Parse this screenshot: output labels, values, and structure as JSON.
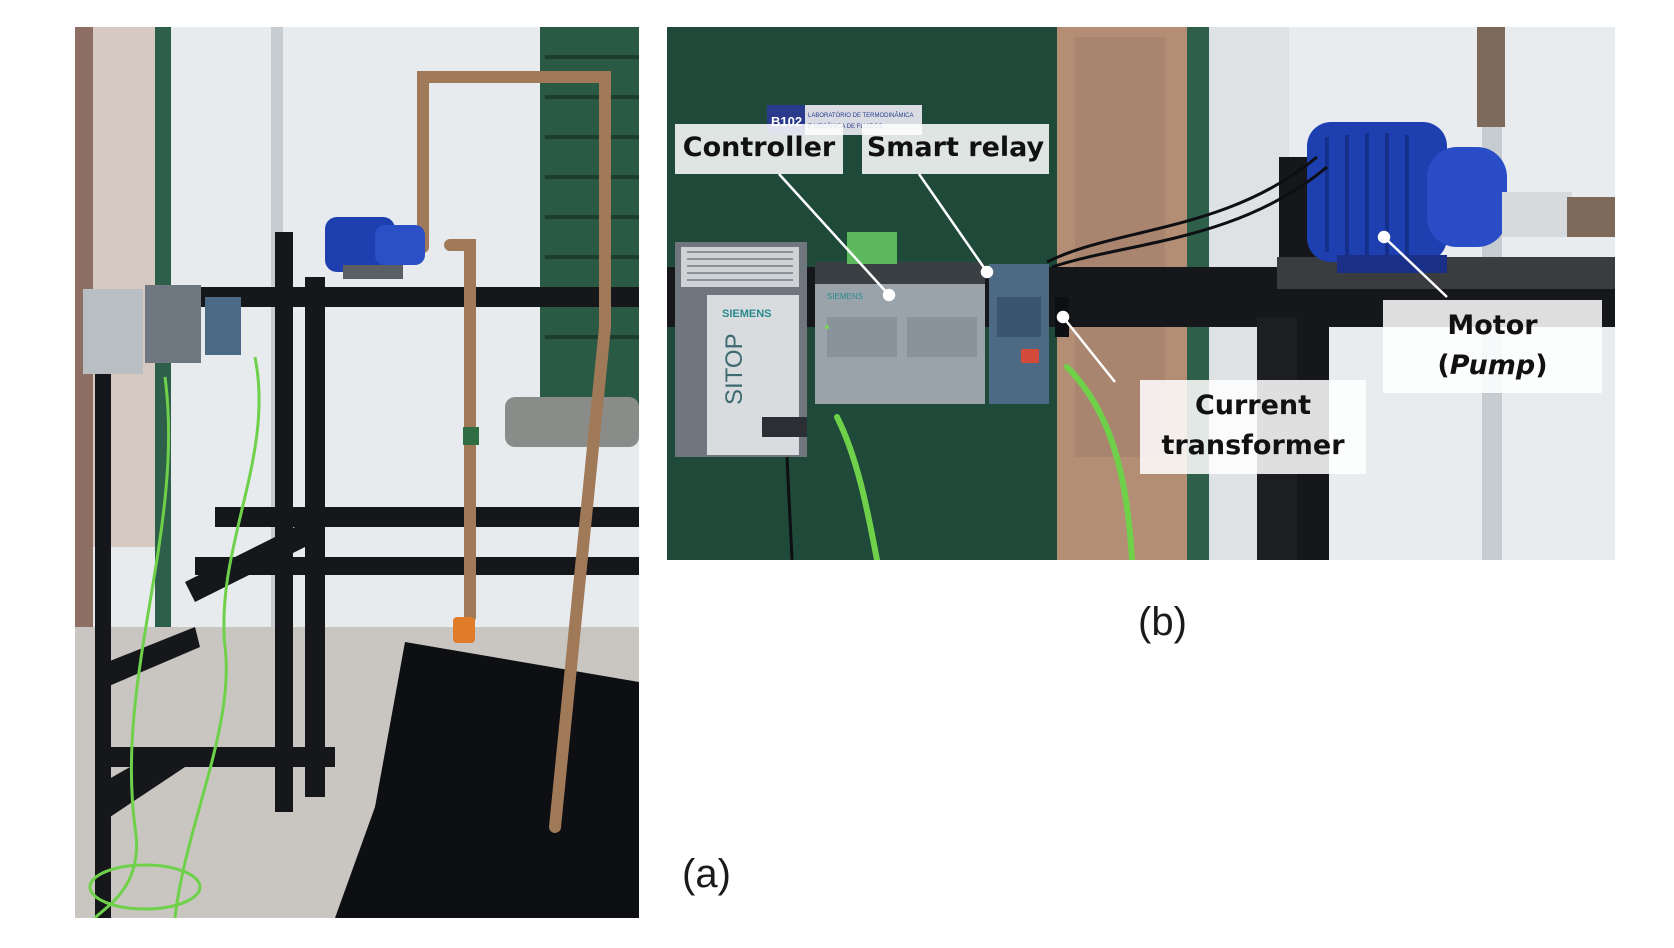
{
  "figure": {
    "panel_a_label": "(a)",
    "panel_b_label": "(b)"
  },
  "annotations": {
    "controller": "Controller",
    "smart_relay": "Smart relay",
    "current_transformer_line1": "Current",
    "current_transformer_line2": "transformer",
    "motor_line1": "Motor",
    "motor_line2_open": "(",
    "motor_line2_italic": "Pump",
    "motor_line2_close": ")"
  },
  "device_markings": {
    "room_sign_number": "B102",
    "room_sign_text_line1": "LABORATÓRIO DE TERMODINÂMICA",
    "room_sign_text_line2": "E MECÂNICA DE FLUIDOS",
    "power_supply_brand": "SIEMENS",
    "power_supply_model": "SITOP",
    "controller_brand": "SIEMENS"
  },
  "colors": {
    "pump_blue": "#1d3fb0",
    "cable_green": "#6fd14a",
    "door_green": "#1f4a3a",
    "frame_black": "#15171a",
    "pipe_brown": "#a07a58",
    "wall_white": "#e9ecef"
  }
}
